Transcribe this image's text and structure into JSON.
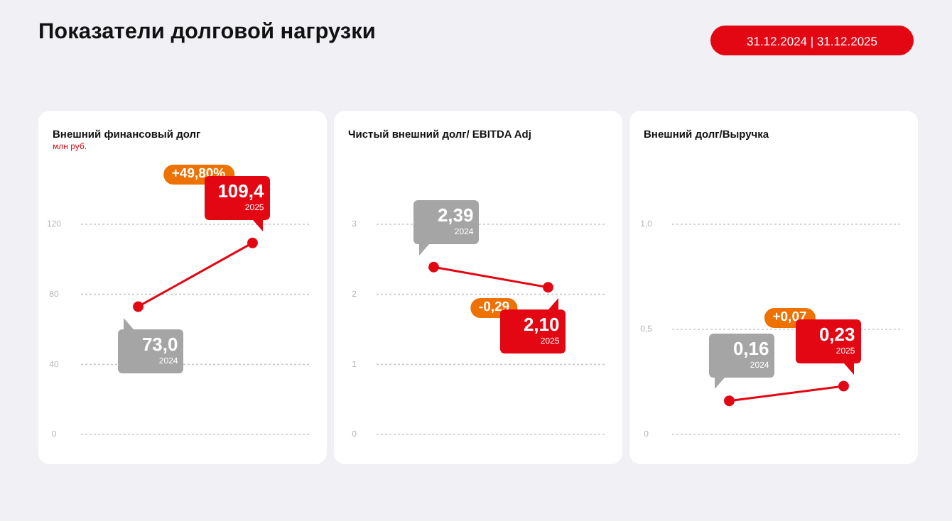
{
  "chart_data": [
    {
      "type": "other",
      "title": "Показатели долговой нагрузки",
      "annotations": [
        "31.12.2024 | 31.12.2025"
      ]
    },
    {
      "type": "line",
      "title": "Внешний финансовый долг",
      "subtitle": "млн руб.",
      "categories": [
        "2024",
        "2025"
      ],
      "values": [
        73.0,
        109.4
      ],
      "value_labels": [
        "73,0",
        "109,4"
      ],
      "color": "#e30613",
      "marker": "circle",
      "ylim": [
        0,
        120
      ],
      "yticks": [
        0,
        40,
        80,
        120
      ],
      "grid": "y",
      "tick_labels": "y",
      "annotations": [
        "+49,80%"
      ]
    },
    {
      "type": "line",
      "title": "Чистый внешний долг/ EBITDA Adj",
      "categories": [
        "2024",
        "2025"
      ],
      "values": [
        2.39,
        2.1
      ],
      "value_labels": [
        "2,39",
        "2,10"
      ],
      "color": "#e30613",
      "marker": "circle",
      "ylim": [
        0,
        3
      ],
      "yticks": [
        0,
        1,
        2,
        3
      ],
      "grid": "y",
      "tick_labels": "y",
      "annotations": [
        "-0,29"
      ]
    },
    {
      "type": "line",
      "title": "Внешний долг/Выручка",
      "categories": [
        "2024",
        "2025"
      ],
      "values": [
        0.16,
        0.23
      ],
      "value_labels": [
        "0,16",
        "0,23"
      ],
      "color": "#e30613",
      "marker": "circle",
      "ylim": [
        0,
        1
      ],
      "yticks": [
        0,
        {
          "value": 0.5,
          "label": "0,5"
        },
        {
          "value": 1,
          "label": "1,0"
        }
      ],
      "grid": "y",
      "tick_labels": "y",
      "annotations": [
        "+0,07"
      ]
    }
  ]
}
